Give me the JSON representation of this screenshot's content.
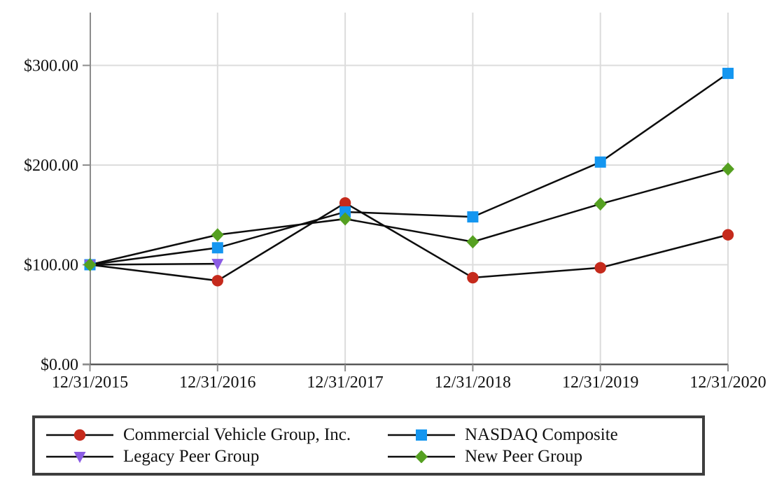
{
  "chart_data": {
    "type": "line",
    "title": "",
    "xlabel": "",
    "ylabel": "",
    "x_labels": [
      "12/31/2015",
      "12/31/2016",
      "12/31/2017",
      "12/31/2018",
      "12/31/2019",
      "12/31/2020"
    ],
    "y_ticks": [
      {
        "label": "$0.00",
        "value": 0
      },
      {
        "label": "$100.00",
        "value": 100
      },
      {
        "label": "$200.00",
        "value": 200
      },
      {
        "label": "$300.00",
        "value": 300
      }
    ],
    "ylim": [
      0,
      353
    ],
    "grid": true,
    "legend_position": "bottom-boxed",
    "colors": {
      "line": "#0d0d0d",
      "grid": "#dcdcdc",
      "axis": "#8c8c8c",
      "axis_dark": "#595959",
      "text": "#111111",
      "legend_border": "#3e3e3e"
    },
    "series": [
      {
        "name": "Commercial Vehicle Group, Inc.",
        "marker": "circle",
        "color": "#c52a1c",
        "values": [
          100,
          84,
          162,
          87,
          97,
          130
        ]
      },
      {
        "name": "NASDAQ Composite",
        "marker": "square",
        "color": "#1496f0",
        "values": [
          100,
          117,
          153,
          148,
          203,
          292
        ]
      },
      {
        "name": "Legacy Peer Group",
        "marker": "triangle-down",
        "color": "#8b5ce4",
        "values": [
          100,
          101,
          null,
          null,
          null,
          null
        ]
      },
      {
        "name": "New Peer Group",
        "marker": "diamond",
        "color": "#55a021",
        "values": [
          100,
          130,
          146,
          123,
          161,
          196
        ]
      }
    ]
  }
}
